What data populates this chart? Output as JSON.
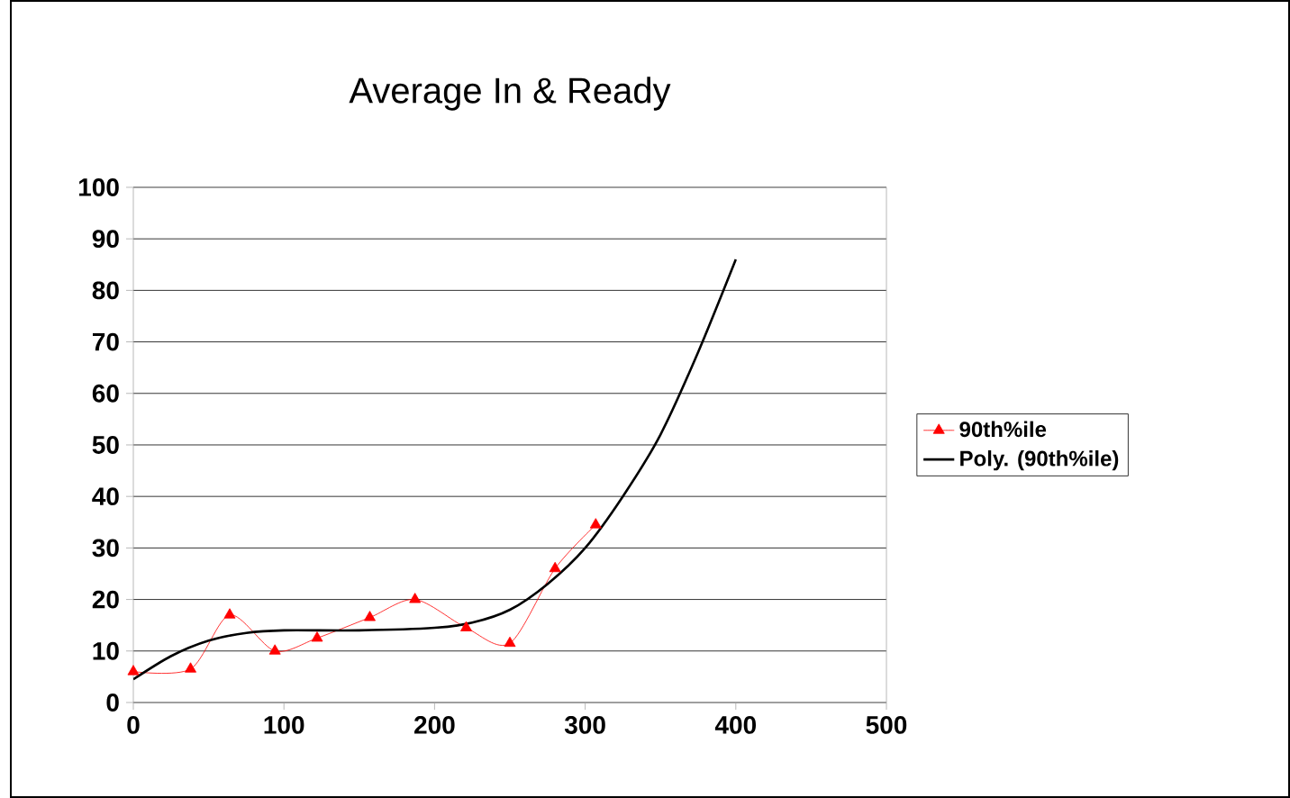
{
  "chart_data": {
    "type": "line",
    "title": "Average In & Ready",
    "xlim": [
      0,
      500
    ],
    "xticks": [
      0,
      100,
      200,
      300,
      400,
      500
    ],
    "ylim": [
      0,
      100
    ],
    "yticks": [
      0,
      10,
      20,
      30,
      40,
      50,
      60,
      70,
      80,
      90,
      100
    ],
    "grid": "y",
    "legend": "right",
    "series": [
      {
        "name": "90th%ile",
        "color": "#ff0000",
        "marker": "triangle",
        "x": [
          0,
          38,
          64,
          94,
          122,
          157,
          187,
          221,
          250,
          280,
          307
        ],
        "values": [
          6,
          6.5,
          17,
          10,
          12.5,
          16.5,
          20,
          14.5,
          11.5,
          26,
          34.5
        ]
      },
      {
        "name": "Poly. (90th%ile)",
        "color": "#000000",
        "marker": "none",
        "x": [
          0,
          25,
          50,
          75,
          100,
          150,
          200,
          225,
          250,
          275,
          300,
          325,
          350,
          375,
          400
        ],
        "values": [
          4.5,
          9,
          12,
          13.5,
          14,
          14,
          14.5,
          15.5,
          18,
          23,
          30,
          40,
          52,
          68,
          86
        ]
      }
    ]
  }
}
